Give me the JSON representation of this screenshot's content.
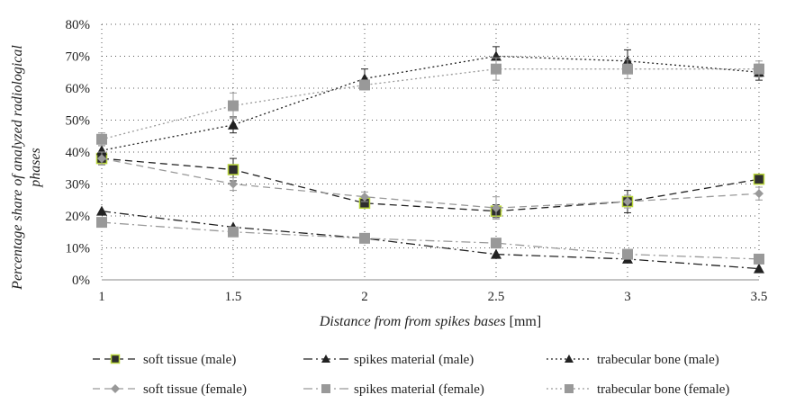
{
  "chart_data": {
    "type": "line",
    "x": [
      1,
      1.5,
      2,
      2.5,
      3,
      3.5
    ],
    "xlim": [
      1,
      3.5
    ],
    "ylim": [
      0,
      80
    ],
    "y_ticks": [
      "0%",
      "10%",
      "20%",
      "30%",
      "40%",
      "50%",
      "60%",
      "70%",
      "80%"
    ],
    "x_ticks": [
      "1",
      "1.5",
      "2",
      "2.5",
      "3",
      "3.5"
    ],
    "xlabel_italic": "Distance from from spikes bases",
    "xlabel_unit": " [mm]",
    "ylabel_line1": "Percentage share of analyzed radiological",
    "ylabel_line2": "phases",
    "grid": "dotted",
    "legend_placement": "bottom",
    "series": [
      {
        "name": "soft tissue (male)",
        "values": [
          38,
          34.5,
          24,
          21.5,
          24.5,
          31.5
        ],
        "err": [
          2,
          3.5,
          1.5,
          2,
          3.5,
          1.5
        ],
        "color": "#222222",
        "marker": "square-green",
        "dash": "8,5"
      },
      {
        "name": "spikes material (male)",
        "values": [
          21.5,
          16.5,
          13,
          8,
          6.5,
          3.5
        ],
        "err": [
          0,
          0,
          0,
          0,
          0,
          0
        ],
        "color": "#222222",
        "marker": "triangle",
        "dash": "10,4,2,4"
      },
      {
        "name": "trabecular bone (male)",
        "values": [
          40.5,
          48.5,
          63,
          70,
          68.5,
          65
        ],
        "err": [
          1.5,
          2.5,
          3,
          3,
          3.5,
          2.5
        ],
        "color": "#222222",
        "marker": "triangle",
        "dash": "2,3"
      },
      {
        "name": "soft tissue (female)",
        "values": [
          38,
          30,
          26,
          22.5,
          24.5,
          27
        ],
        "err": [
          2,
          2,
          1.5,
          3.5,
          2,
          2
        ],
        "color": "#999999",
        "marker": "diamond",
        "dash": "8,5"
      },
      {
        "name": "spikes material (female)",
        "values": [
          18,
          15,
          13,
          11.5,
          8,
          6.5
        ],
        "err": [
          0,
          0,
          0,
          0,
          0,
          0
        ],
        "color": "#999999",
        "marker": "square",
        "dash": "10,4,2,4"
      },
      {
        "name": "trabecular bone (female)",
        "values": [
          44,
          54.5,
          61,
          66,
          66,
          66
        ],
        "err": [
          2,
          4,
          1.5,
          3.5,
          3,
          2.5
        ],
        "color": "#999999",
        "marker": "square",
        "dash": "2,3"
      }
    ]
  }
}
